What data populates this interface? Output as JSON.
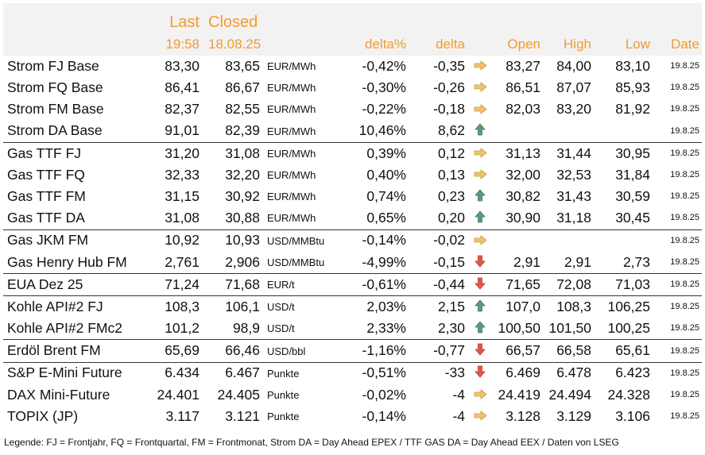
{
  "header": {
    "last_label": "Last",
    "closed_label": "Closed",
    "last_time": "19:58",
    "closed_date": "18.08.25",
    "delta_pct_label": "delta%",
    "delta_label": "delta",
    "open_label": "Open",
    "high_label": "High",
    "low_label": "Low",
    "date_label": "Date"
  },
  "colors": {
    "header_text": "#f29b2f",
    "header_bg": "#f2f2f2",
    "arrow_right": "#f0c36a",
    "arrow_up": "#5e9a7a",
    "arrow_down": "#e2574c"
  },
  "rows": [
    {
      "name": "Strom FJ Base",
      "last": "83,30",
      "closed": "83,65",
      "unit": "EUR/MWh",
      "delta_pct": "-0,42%",
      "delta": "-0,35",
      "arrow": "arrow-right-icon",
      "open": "83,27",
      "high": "84,00",
      "low": "83,10",
      "date": "19.8.25"
    },
    {
      "name": "Strom FQ Base",
      "last": "86,41",
      "closed": "86,67",
      "unit": "EUR/MWh",
      "delta_pct": "-0,30%",
      "delta": "-0,26",
      "arrow": "arrow-right-icon",
      "open": "86,51",
      "high": "87,07",
      "low": "85,93",
      "date": "19.8.25"
    },
    {
      "name": "Strom FM Base",
      "last": "82,37",
      "closed": "82,55",
      "unit": "EUR/MWh",
      "delta_pct": "-0,22%",
      "delta": "-0,18",
      "arrow": "arrow-right-icon",
      "open": "82,03",
      "high": "83,20",
      "low": "81,92",
      "date": "19.8.25"
    },
    {
      "name": "Strom DA Base",
      "last": "91,01",
      "closed": "82,39",
      "unit": "EUR/MWh",
      "delta_pct": "10,46%",
      "delta": "8,62",
      "arrow": "arrow-up-icon",
      "open": "",
      "high": "",
      "low": "",
      "date": "19.8.25"
    },
    {
      "name": "Gas TTF FJ",
      "last": "31,20",
      "closed": "31,08",
      "unit": "EUR/MWh",
      "delta_pct": "0,39%",
      "delta": "0,12",
      "arrow": "arrow-right-icon",
      "open": "31,13",
      "high": "31,44",
      "low": "30,95",
      "date": "19.8.25",
      "sep": true
    },
    {
      "name": "Gas TTF FQ",
      "last": "32,33",
      "closed": "32,20",
      "unit": "EUR/MWh",
      "delta_pct": "0,40%",
      "delta": "0,13",
      "arrow": "arrow-right-icon",
      "open": "32,00",
      "high": "32,53",
      "low": "31,84",
      "date": "19.8.25"
    },
    {
      "name": "Gas TTF FM",
      "last": "31,15",
      "closed": "30,92",
      "unit": "EUR/MWh",
      "delta_pct": "0,74%",
      "delta": "0,23",
      "arrow": "arrow-up-icon",
      "open": "30,82",
      "high": "31,43",
      "low": "30,59",
      "date": "19.8.25"
    },
    {
      "name": "Gas TTF DA",
      "last": "31,08",
      "closed": "30,88",
      "unit": "EUR/MWh",
      "delta_pct": "0,65%",
      "delta": "0,20",
      "arrow": "arrow-up-icon",
      "open": "30,90",
      "high": "31,18",
      "low": "30,45",
      "date": "19.8.25"
    },
    {
      "name": "Gas JKM FM",
      "last": "10,92",
      "closed": "10,93",
      "unit": "USD/MMBtu",
      "delta_pct": "-0,14%",
      "delta": "-0,02",
      "arrow": "arrow-right-icon",
      "open": "",
      "high": "",
      "low": "",
      "date": "19.8.25",
      "sep": true
    },
    {
      "name": "Gas Henry Hub FM",
      "last": "2,761",
      "closed": "2,906",
      "unit": "USD/MMBtu",
      "delta_pct": "-4,99%",
      "delta": "-0,15",
      "arrow": "arrow-down-icon",
      "open": "2,91",
      "high": "2,91",
      "low": "2,73",
      "date": "19.8.25"
    },
    {
      "name": "EUA Dez 25",
      "last": "71,24",
      "closed": "71,68",
      "unit": "EUR/t",
      "delta_pct": "-0,61%",
      "delta": "-0,44",
      "arrow": "arrow-down-icon",
      "open": "71,65",
      "high": "72,08",
      "low": "71,03",
      "date": "19.8.25",
      "sep": true
    },
    {
      "name": "Kohle API#2 FJ",
      "last": "108,3",
      "closed": "106,1",
      "unit": "USD/t",
      "delta_pct": "2,03%",
      "delta": "2,15",
      "arrow": "arrow-up-icon",
      "open": "107,0",
      "high": "108,3",
      "low": "106,25",
      "date": "19.8.25",
      "sep": true
    },
    {
      "name": "Kohle API#2 FMc2",
      "last": "101,2",
      "closed": "98,9",
      "unit": "USD/t",
      "delta_pct": "2,33%",
      "delta": "2,30",
      "arrow": "arrow-up-icon",
      "open": "100,50",
      "high": "101,50",
      "low": "100,25",
      "date": "19.8.25"
    },
    {
      "name": "Erdöl Brent FM",
      "last": "65,69",
      "closed": "66,46",
      "unit": "USD/bbl",
      "delta_pct": "-1,16%",
      "delta": "-0,77",
      "arrow": "arrow-down-icon",
      "open": "66,57",
      "high": "66,58",
      "low": "65,61",
      "date": "19.8.25",
      "sep": true
    },
    {
      "name": "S&P E-Mini Future",
      "last": "6.434",
      "closed": "6.467",
      "unit": "Punkte",
      "delta_pct": "-0,51%",
      "delta": "-33",
      "arrow": "arrow-down-icon",
      "open": "6.469",
      "high": "6.478",
      "low": "6.423",
      "date": "19.8.25",
      "sep": true
    },
    {
      "name": "DAX Mini-Future",
      "last": "24.401",
      "closed": "24.405",
      "unit": "Punkte",
      "delta_pct": "-0,02%",
      "delta": "-4",
      "arrow": "arrow-right-icon",
      "open": "24.419",
      "high": "24.494",
      "low": "24.328",
      "date": "19.8.25"
    },
    {
      "name": "TOPIX (JP)",
      "last": "3.117",
      "closed": "3.121",
      "unit": "Punkte",
      "delta_pct": "-0,14%",
      "delta": "-4",
      "arrow": "arrow-right-icon",
      "open": "3.128",
      "high": "3.129",
      "low": "3.106",
      "date": "19.8.25"
    }
  ],
  "legend": "Legende: FJ = Frontjahr, FQ = Frontquartal, FM = Frontmonat, Strom DA = Day Ahead EPEX / TTF GAS DA = Day Ahead EEX / Daten von LSEG"
}
